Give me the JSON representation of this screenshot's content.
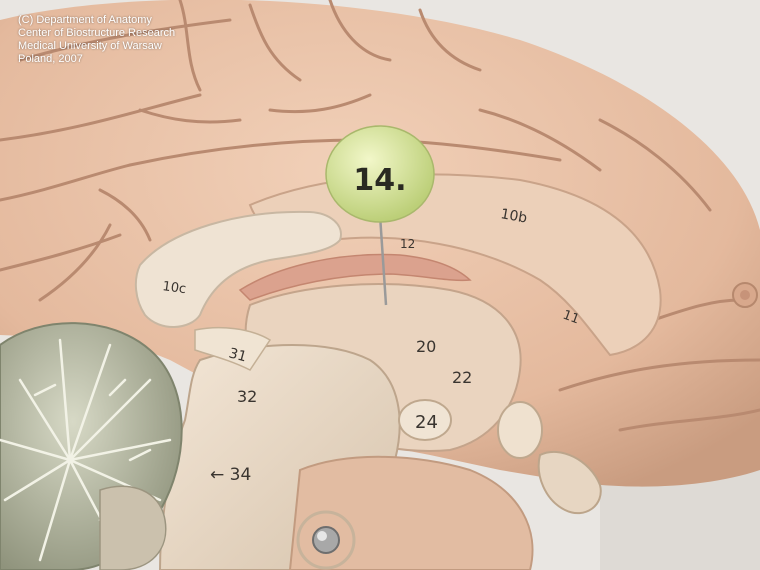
{
  "credit": {
    "line1": "(C) Department of Anatomy",
    "line2": "Center of Biostructure Research",
    "line3": "Medical University of Warsaw",
    "line4": "Poland, 2007"
  },
  "pin": {
    "label": "14."
  },
  "labels": {
    "l10b": "10b",
    "l10c": "10c",
    "l12": "12",
    "l20": "20",
    "l22": "22",
    "l24": "24",
    "l31": "31",
    "l32": "32",
    "l34": "← 34",
    "l11": "11"
  },
  "colors": {
    "background": "#e9e6e2",
    "brain": "#e9c3a8",
    "brain_dark": "#d9ab8e",
    "cerebellum": "#b8bba4",
    "white_matter": "#efe3d3",
    "pin_head": "#dfeaa0"
  }
}
